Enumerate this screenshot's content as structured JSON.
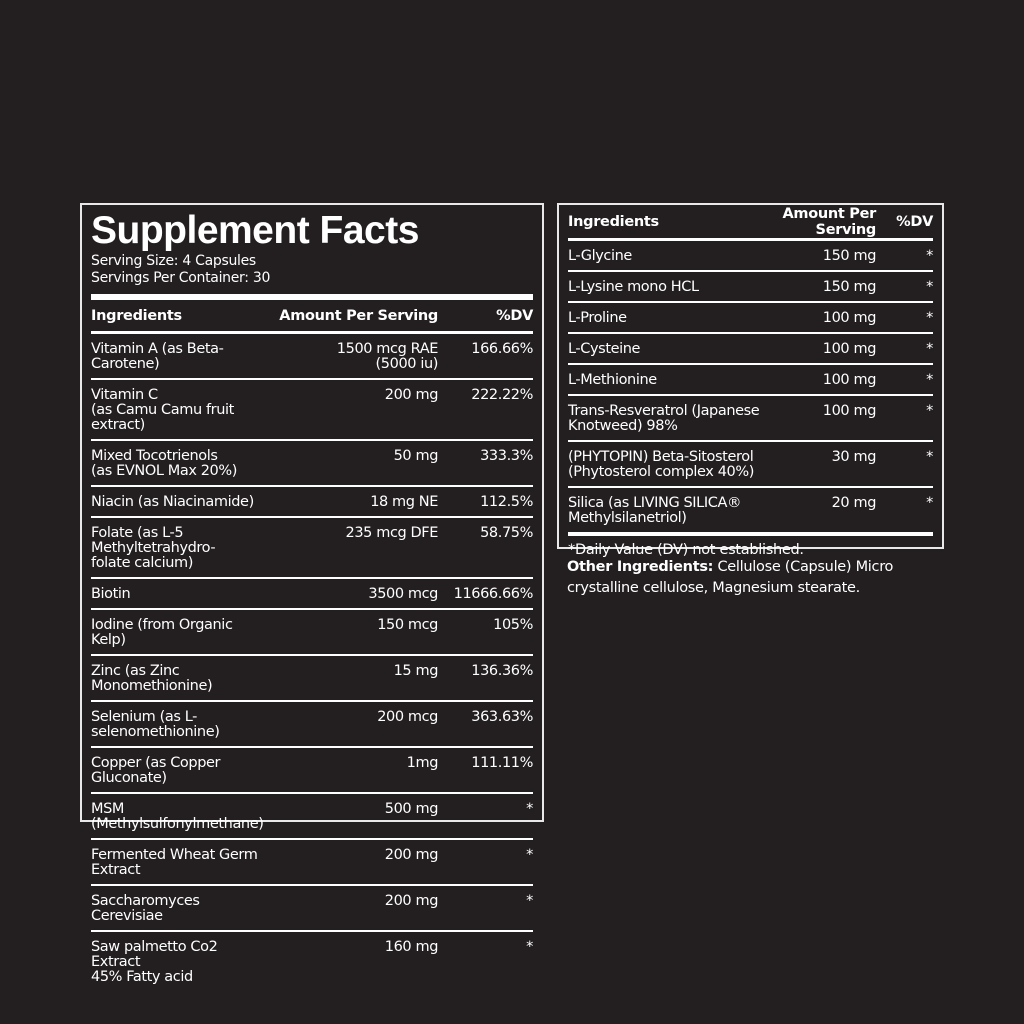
{
  "left": {
    "title": "Supplement Facts",
    "serving_size": "Serving Size:  4 Capsules",
    "servings_per_container": "Servings Per Container:  30",
    "headers": {
      "ingredient": "Ingredients",
      "amount": "Amount Per Serving",
      "dv": "%DV"
    },
    "rows": [
      {
        "name": "Vitamin A (as Beta-Carotene)",
        "amount": "1500 mcg RAE\n(5000 iu)",
        "dv": "166.66%"
      },
      {
        "name": "Vitamin C\n(as Camu Camu fruit extract)",
        "amount": "200 mg",
        "dv": "222.22%"
      },
      {
        "name": "Mixed Tocotrienols\n(as EVNOL Max 20%)",
        "amount": "50 mg",
        "dv": "333.3%"
      },
      {
        "name": "Niacin (as Niacinamide)",
        "amount": "18 mg NE",
        "dv": "112.5%"
      },
      {
        "name": "Folate (as L-5 Methyltetrahydro-\nfolate calcium)",
        "amount": "235 mcg DFE",
        "dv": "58.75%"
      },
      {
        "name": "Biotin",
        "amount": "3500 mcg",
        "dv": "11666.66%"
      },
      {
        "name": "Iodine (from Organic Kelp)",
        "amount": "150 mcg",
        "dv": "105%"
      },
      {
        "name": "Zinc (as Zinc Monomethionine)",
        "amount": "15 mg",
        "dv": "136.36%"
      },
      {
        "name": "Selenium (as L-selenomethionine)",
        "amount": "200 mcg",
        "dv": "363.63%"
      },
      {
        "name": "Copper (as Copper Gluconate)",
        "amount": "1mg",
        "dv": "111.11%"
      },
      {
        "name": "MSM (Methylsulfonylmethane)",
        "amount": "500 mg",
        "dv": "*"
      },
      {
        "name": "Fermented Wheat Germ Extract",
        "amount": "200 mg",
        "dv": "*"
      },
      {
        "name": "Saccharomyces Cerevisiae",
        "amount": "200 mg",
        "dv": "*"
      },
      {
        "name": "Saw palmetto Co2 Extract\n45% Fatty acid",
        "amount": "160 mg",
        "dv": "*"
      }
    ]
  },
  "right": {
    "headers": {
      "ingredient": "Ingredients",
      "amount": "Amount Per Serving",
      "dv": "%DV"
    },
    "rows": [
      {
        "name": "L-Glycine",
        "amount": "150 mg",
        "dv": "*"
      },
      {
        "name": "L-Lysine mono HCL",
        "amount": "150 mg",
        "dv": "*"
      },
      {
        "name": "L-Proline",
        "amount": "100 mg",
        "dv": "*"
      },
      {
        "name": "L-Cysteine",
        "amount": "100 mg",
        "dv": "*"
      },
      {
        "name": "L-Methionine",
        "amount": "100 mg",
        "dv": "*"
      },
      {
        "name": "Trans-Resveratrol (Japanese\nKnotweed) 98%",
        "amount": "100 mg",
        "dv": "*"
      },
      {
        "name": "(PHYTOPIN) Beta-Sitosterol\n(Phytosterol complex 40%)",
        "amount": "30 mg",
        "dv": "*"
      },
      {
        "name": "Silica (as LIVING SILICA®\nMethylsilanetriol)",
        "amount": "20 mg",
        "dv": "*"
      }
    ],
    "footnote": "*Daily Value (DV) not established."
  },
  "other_ingredients": {
    "label": "Other Ingredients:",
    "text": " Cellulose (Capsule) Micro crystalline cellulose, Magnesium stearate."
  }
}
